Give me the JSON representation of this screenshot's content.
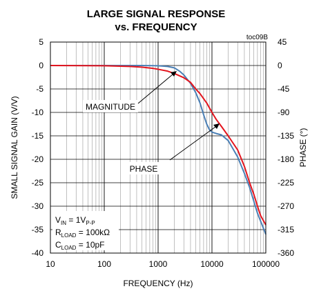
{
  "chart_data": {
    "type": "line",
    "title": "LARGE SIGNAL RESPONSE",
    "subtitle": "vs. FREQUENCY",
    "figure_id": "toc09B",
    "xlabel": "FREQUENCY (Hz)",
    "ylabel": "SMALL SIGNAL GAIN (V/V)",
    "y2label": "PHASE (°)",
    "xscale": "log",
    "xlim": [
      10,
      100000
    ],
    "ylim": [
      -40,
      5
    ],
    "y2lim": [
      -360,
      45
    ],
    "grid": true,
    "x_ticks": [
      "10",
      "100",
      "1000",
      "10000",
      "100000"
    ],
    "y_ticks": [
      "5",
      "0",
      "-5",
      "-10",
      "-15",
      "-20",
      "-25",
      "-30",
      "-35",
      "-40"
    ],
    "y2_ticks": [
      "45",
      "0",
      "-45",
      "-90",
      "-135",
      "-180",
      "-225",
      "-270",
      "-315",
      "-360"
    ],
    "annotations": [
      "MAGNITUDE",
      "PHASE"
    ],
    "conditions": {
      "vin": {
        "main": "V",
        "sub1": "IN",
        "mid": " = 1V",
        "sub2": "P-P"
      },
      "rload": {
        "main": "R",
        "sub1": "LOAD",
        "mid": " = 100kΩ"
      },
      "cload": {
        "main": "C",
        "sub1": "LOAD",
        "mid": " = 10pF"
      }
    },
    "series": [
      {
        "name": "MAGNITUDE",
        "axis": "left",
        "color": "#4a7fb5",
        "x": [
          10,
          100,
          500,
          1000,
          1500,
          2000,
          2500,
          3000,
          4000,
          5000,
          6000,
          7000,
          8000,
          9000,
          10000,
          12000,
          15000,
          20000,
          30000,
          40000,
          50000,
          70000,
          100000
        ],
        "y": [
          0,
          0,
          0,
          -0.05,
          -0.2,
          -0.5,
          -1.2,
          -2,
          -3.8,
          -5.8,
          -8,
          -10.5,
          -12.5,
          -13.7,
          -14.2,
          -14.5,
          -14.8,
          -16,
          -19.5,
          -23,
          -26,
          -31.5,
          -36
        ]
      },
      {
        "name": "PHASE",
        "axis": "right",
        "color": "#e3141d",
        "x": [
          10,
          100,
          300,
          500,
          800,
          1000,
          1500,
          2000,
          3000,
          4000,
          5000,
          6000,
          8000,
          10000,
          12000,
          15000,
          20000,
          30000,
          40000,
          50000,
          60000,
          70000,
          80000,
          100000
        ],
        "y": [
          0,
          -0.45,
          -1.8,
          -3.15,
          -5.4,
          -7.2,
          -10.8,
          -15.3,
          -23.4,
          -32.4,
          -45,
          -54,
          -72,
          -90,
          -103.5,
          -117,
          -135,
          -162,
          -193.5,
          -225,
          -247.5,
          -270,
          -288,
          -306
        ]
      }
    ]
  }
}
